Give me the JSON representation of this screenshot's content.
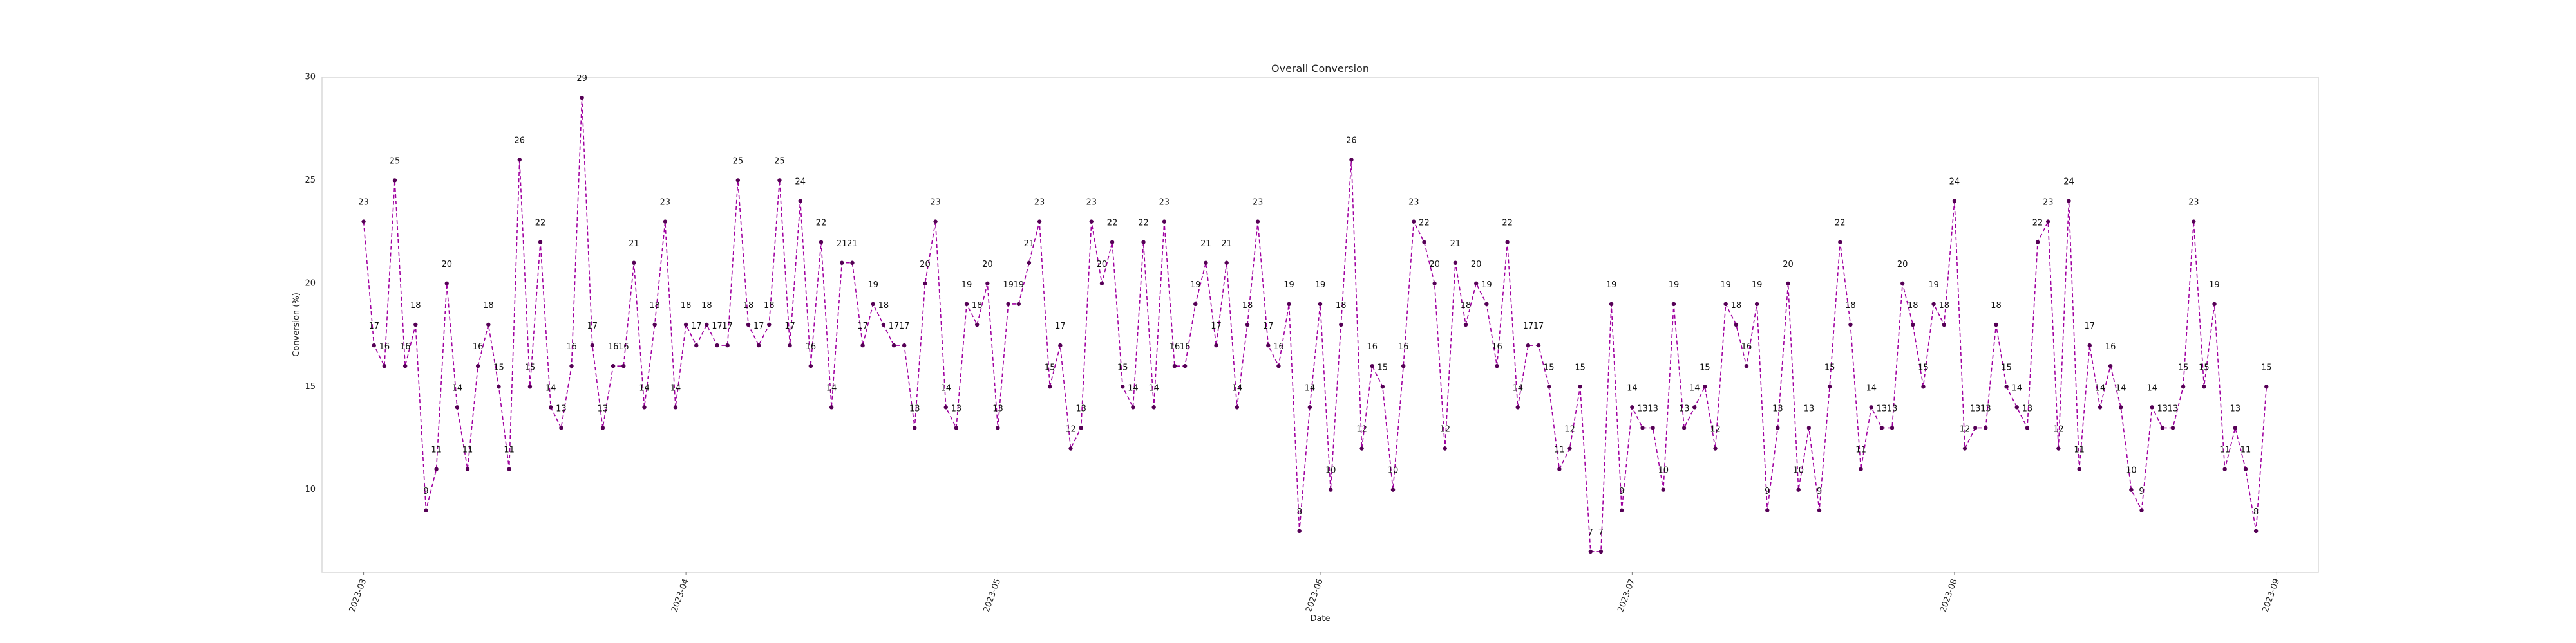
{
  "chart_data": {
    "type": "line",
    "title": "Overall Conversion",
    "xlabel": "Date",
    "ylabel": "Conversion (%)",
    "x_start": "2023-03-01",
    "xlim": [
      "2023-02-25",
      "2023-09-05"
    ],
    "ylim": [
      6,
      30
    ],
    "yticks": [
      10,
      15,
      20,
      25,
      30
    ],
    "xticks": [
      "2023-03",
      "2023-04",
      "2023-05",
      "2023-06",
      "2023-07",
      "2023-08",
      "2023-09"
    ],
    "grid": false,
    "line_color": "#a000a0",
    "marker_color": "#550055",
    "line_style": "dashed",
    "series": [
      {
        "values": [
          23,
          17,
          16,
          25,
          16,
          18,
          9,
          11,
          20,
          14,
          11,
          16,
          18,
          15,
          11,
          26,
          15,
          22,
          14,
          13,
          16,
          29,
          17,
          13,
          16,
          16,
          21,
          14,
          18,
          23,
          14,
          18,
          17,
          18,
          17,
          17,
          25,
          18,
          17,
          18,
          25,
          17,
          24,
          16,
          22,
          14,
          21,
          21,
          17,
          19,
          18,
          17,
          17,
          13,
          20,
          23,
          14,
          13,
          19,
          18,
          20,
          13,
          19,
          19,
          21,
          23,
          15,
          17,
          12,
          13,
          23,
          20,
          22,
          15,
          14,
          22,
          14,
          23,
          16,
          16,
          19,
          21,
          17,
          21,
          14,
          18,
          23,
          17,
          16,
          19,
          8,
          14,
          19,
          10,
          18,
          26,
          12,
          16,
          15,
          10,
          16,
          23,
          22,
          20,
          12,
          21,
          18,
          20,
          19,
          16,
          22,
          14,
          17,
          17,
          15,
          11,
          12,
          15,
          7,
          7,
          19,
          9,
          14,
          13,
          13,
          10,
          19,
          13,
          14,
          15,
          12,
          19,
          18,
          16,
          19,
          9,
          13,
          20,
          10,
          13,
          9,
          15,
          22,
          18,
          11,
          14,
          13,
          13,
          20,
          18,
          15,
          19,
          18,
          24,
          12,
          13,
          13,
          18,
          15,
          14,
          13,
          22,
          23,
          12,
          24,
          11,
          17,
          14,
          16,
          14,
          10,
          9,
          14,
          13,
          13,
          15,
          23,
          15,
          19,
          11,
          13,
          11,
          8,
          15
        ]
      }
    ]
  }
}
